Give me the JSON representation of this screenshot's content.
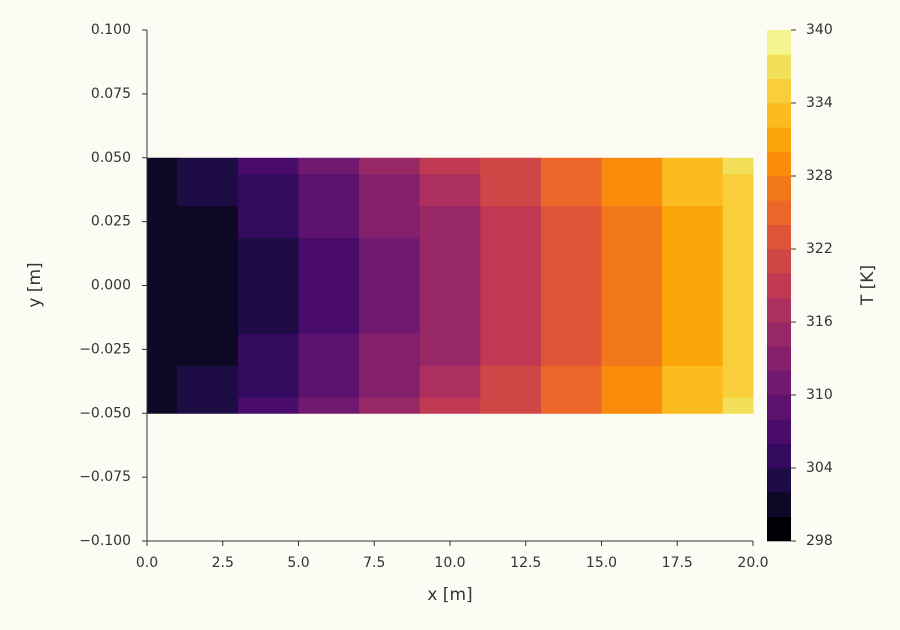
{
  "chart_data": {
    "type": "contour",
    "xlabel": "x [m]",
    "ylabel": "y [m]",
    "colorbar_label": "T [K]",
    "x": [
      0,
      2,
      4,
      6,
      8,
      10,
      12,
      14,
      16,
      18,
      20
    ],
    "y": [
      -0.05,
      -0.0375,
      -0.025,
      -0.0125,
      0,
      0.0125,
      0.025,
      0.0375,
      0.05
    ],
    "z": [
      [
        300,
        303.2,
        306.7,
        310.5,
        314.3,
        318.1,
        321.9,
        325.7,
        329.5,
        333.3,
        337.1
      ],
      [
        300,
        302.3,
        305.4,
        309.2,
        313.0,
        316.8,
        320.6,
        324.4,
        328.2,
        332.0,
        335.8
      ],
      [
        300,
        301.7,
        304.5,
        308.3,
        312.1,
        315.9,
        319.7,
        323.5,
        327.3,
        331.1,
        334.9
      ],
      [
        300,
        301.3,
        303.9,
        307.7,
        311.5,
        315.3,
        319.1,
        322.9,
        326.7,
        330.5,
        334.3
      ],
      [
        300,
        301.2,
        303.7,
        307.5,
        311.3,
        315.1,
        318.9,
        322.7,
        326.5,
        330.3,
        334.1
      ],
      [
        300,
        301.3,
        303.9,
        307.7,
        311.5,
        315.3,
        319.1,
        322.9,
        326.7,
        330.5,
        334.3
      ],
      [
        300,
        301.7,
        304.5,
        308.3,
        312.1,
        315.9,
        319.7,
        323.5,
        327.3,
        331.1,
        334.9
      ],
      [
        300,
        302.3,
        305.4,
        309.2,
        313.0,
        316.8,
        320.6,
        324.4,
        328.2,
        332.0,
        335.8
      ],
      [
        300,
        303.2,
        306.7,
        310.5,
        314.3,
        318.1,
        321.9,
        325.7,
        329.5,
        333.3,
        337.1
      ]
    ],
    "levels": [
      298,
      300,
      302,
      304,
      306,
      308,
      310,
      312,
      314,
      316,
      318,
      320,
      322,
      324,
      326,
      328,
      330,
      332,
      334,
      336,
      338,
      340
    ],
    "colors": [
      "#000004",
      "#0c0826",
      "#1e0c45",
      "#340a5f",
      "#4a0c6b",
      "#5d126e",
      "#71196e",
      "#84206b",
      "#982766",
      "#ac2f5e",
      "#bf3952",
      "#d04545",
      "#df5337",
      "#eb6628",
      "#f37819",
      "#f98c0a",
      "#fca50a",
      "#fbbb21",
      "#f8cf3a",
      "#f2e05a",
      "#f5f590"
    ],
    "xlim": [
      0,
      20
    ],
    "ylim": [
      -0.1,
      0.1
    ],
    "clim": [
      298,
      340
    ],
    "xticks": [
      {
        "value": 0,
        "label": "0.0"
      },
      2.5,
      {
        "value": 5,
        "label": "5.0"
      },
      7.5,
      {
        "value": 10,
        "label": "10.0"
      },
      12.5,
      {
        "value": 15,
        "label": "15.0"
      },
      17.5,
      {
        "value": 20,
        "label": "20.0"
      }
    ],
    "yticks": [
      {
        "value": -0.1,
        "label": "−0.100"
      },
      {
        "value": -0.075,
        "label": "−0.075"
      },
      {
        "value": -0.05,
        "label": "−0.050"
      },
      {
        "value": -0.025,
        "label": "−0.025"
      },
      {
        "value": 0,
        "label": "0.000"
      },
      {
        "value": 0.025,
        "label": "0.025"
      },
      {
        "value": 0.05,
        "label": "0.050"
      },
      {
        "value": 0.075,
        "label": "0.075"
      },
      {
        "value": 0.1,
        "label": "0.100"
      }
    ],
    "cticks": [
      298,
      304,
      310,
      316,
      322,
      328,
      334,
      340
    ]
  }
}
